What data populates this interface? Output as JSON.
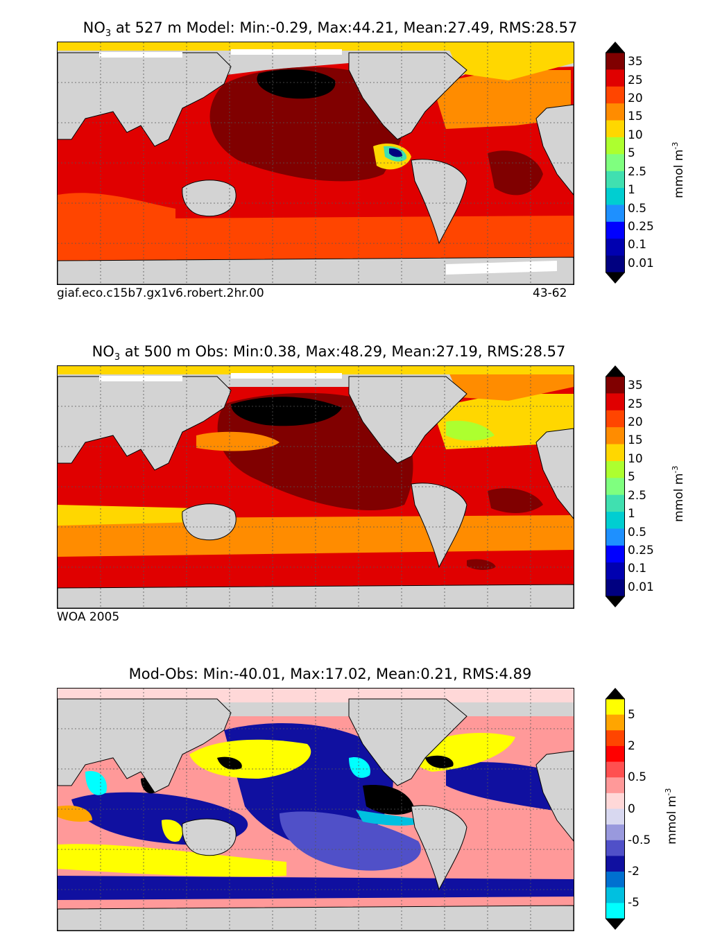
{
  "panels": [
    {
      "id": "model",
      "title_prefix": "NO",
      "title_sub": "3",
      "title_rest": " at 527 m Model: Min:-0.29, Max:44.21, Mean:27.49, RMS:28.57",
      "caption_left": "giaf.eco.c15b7.gx1v6.robert.2hr.00",
      "caption_right": "43-62",
      "colorbar_labels": [
        "35",
        "25",
        "20",
        "15",
        "10",
        "5",
        "2.5",
        "1",
        "0.5",
        "0.25",
        "0.1",
        "0.01"
      ],
      "colorbar_colors": [
        "#800000",
        "#e00000",
        "#ff4500",
        "#ff8c00",
        "#ffd700",
        "#adff2f",
        "#7fff7f",
        "#40e0b0",
        "#00ced1",
        "#1e90ff",
        "#0000ff",
        "#0000b0",
        "#000080"
      ],
      "unit_text": "mmol m",
      "unit_sup": "-3"
    },
    {
      "id": "obs",
      "title_prefix": "NO",
      "title_sub": "3",
      "title_rest": " at 500 m Obs: Min:0.38, Max:48.29, Mean:27.19, RMS:28.57",
      "caption_left": "WOA 2005",
      "caption_right": "",
      "colorbar_labels": [
        "35",
        "25",
        "20",
        "15",
        "10",
        "5",
        "2.5",
        "1",
        "0.5",
        "0.25",
        "0.1",
        "0.01"
      ],
      "colorbar_colors": [
        "#800000",
        "#e00000",
        "#ff4500",
        "#ff8c00",
        "#ffd700",
        "#adff2f",
        "#7fff7f",
        "#40e0b0",
        "#00ced1",
        "#1e90ff",
        "#0000ff",
        "#0000b0",
        "#000080"
      ],
      "unit_text": "mmol m",
      "unit_sup": "-3"
    },
    {
      "id": "diff",
      "title_prefix": "",
      "title_sub": "",
      "title_rest": "Mod-Obs: Min:-40.01, Max:17.02, Mean:0.21, RMS:4.89",
      "caption_left": "",
      "caption_right": "",
      "colorbar_labels": [
        "5",
        "2",
        "0.5",
        "0",
        "-0.5",
        "-2",
        "-5"
      ],
      "colorbar_colors": [
        "#ffff00",
        "#ffa500",
        "#ff4500",
        "#ff0000",
        "#ff5050",
        "#ff9999",
        "#ffd8d8",
        "#d8d8f0",
        "#9999dd",
        "#5050c8",
        "#1010a0",
        "#0070d0",
        "#00c0e0",
        "#00ffff"
      ],
      "unit_text": "mmol m",
      "unit_sup": "-3"
    }
  ]
}
